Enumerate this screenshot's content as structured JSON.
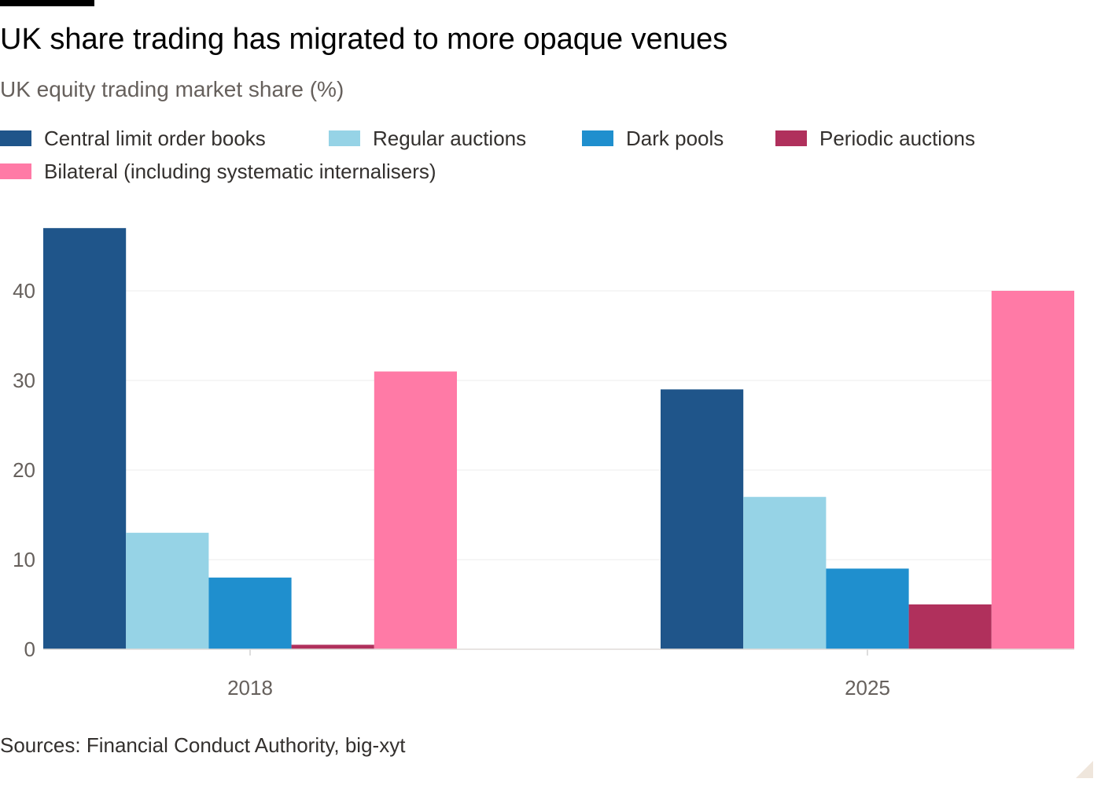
{
  "title": "UK share trading has migrated to more opaque venues",
  "subtitle": "UK equity trading market share (%)",
  "source": "Sources: Financial Conduct Authority, big-xyt",
  "colors": {
    "background": "#ffffff",
    "gridline": "#eeeeee",
    "axis_line": "#bbbbbb",
    "tick_text": "#66605c"
  },
  "chart_data": {
    "type": "bar",
    "categories": [
      "2018",
      "2025"
    ],
    "series": [
      {
        "name": "Central limit order books",
        "color": "#1f558a",
        "values": [
          47,
          29
        ]
      },
      {
        "name": "Regular auctions",
        "color": "#96d3e6",
        "values": [
          13,
          17
        ]
      },
      {
        "name": "Dark pools",
        "color": "#1f8fce",
        "values": [
          8,
          9
        ]
      },
      {
        "name": "Periodic auctions",
        "color": "#b0305c",
        "values": [
          0.5,
          5
        ]
      },
      {
        "name": "Bilateral (including systematic internalisers)",
        "color": "#ff7aa6",
        "values": [
          31,
          40
        ]
      }
    ],
    "ylim": [
      0,
      48
    ],
    "yticks": [
      "0",
      "10",
      "20",
      "30",
      "40"
    ],
    "grid": true,
    "legend": "top"
  }
}
